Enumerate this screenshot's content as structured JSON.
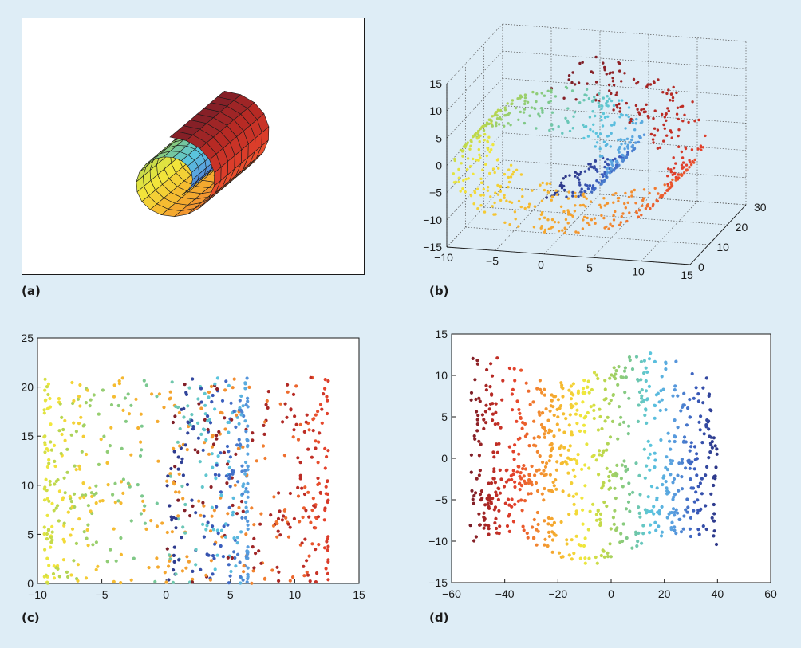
{
  "panel_labels": {
    "a": "(a)",
    "b": "(b)",
    "c": "(c)",
    "d": "(d)"
  },
  "colors": {
    "background": "#deedf6",
    "palette": [
      "#7a1e28",
      "#b82a24",
      "#e6432c",
      "#f28730",
      "#f5b62f",
      "#f2e83c",
      "#b8d64e",
      "#7ec889",
      "#5ac6dd",
      "#5aa0e0",
      "#3a5dbd",
      "#2c3585"
    ]
  },
  "chart_data": [
    {
      "type": "surface",
      "panel": "a",
      "description_shape": "swiss-roll ribbon surface",
      "grid": false,
      "axes_visible": false
    },
    {
      "type": "scatter",
      "panel": "b",
      "projection": "3d",
      "x_ticks": [
        "−10",
        "−5",
        "0",
        "5",
        "10",
        "15"
      ],
      "y_ticks": [
        "0",
        "10",
        "20",
        "30"
      ],
      "z_ticks": [
        "−15",
        "−10",
        "−5",
        "0",
        "5",
        "10",
        "15"
      ],
      "xlim": [
        -10,
        15
      ],
      "ylim": [
        0,
        30
      ],
      "zlim": [
        -15,
        15
      ],
      "grid": true,
      "point_count": 800
    },
    {
      "type": "scatter",
      "panel": "c",
      "xlim": [
        -10,
        15
      ],
      "ylim": [
        0,
        25
      ],
      "x_ticks": [
        "−10",
        "−5",
        "0",
        "5",
        "10",
        "15"
      ],
      "y_ticks": [
        "0",
        "5",
        "10",
        "15",
        "20",
        "25"
      ],
      "grid": false,
      "point_count": 800,
      "x_range_of_points": [
        -9.5,
        12.5
      ],
      "y_range_of_points": [
        0,
        21
      ]
    },
    {
      "type": "scatter",
      "panel": "d",
      "xlim": [
        -60,
        60
      ],
      "ylim": [
        -15,
        15
      ],
      "x_ticks": [
        "−60",
        "−40",
        "−20",
        "0",
        "20",
        "40",
        "60"
      ],
      "y_ticks": [
        "−15",
        "−10",
        "−5",
        "0",
        "5",
        "10",
        "15"
      ],
      "grid": false,
      "point_count": 800,
      "x_range_of_points": [
        -53,
        40
      ],
      "y_range_of_points": [
        -12,
        12
      ]
    }
  ]
}
